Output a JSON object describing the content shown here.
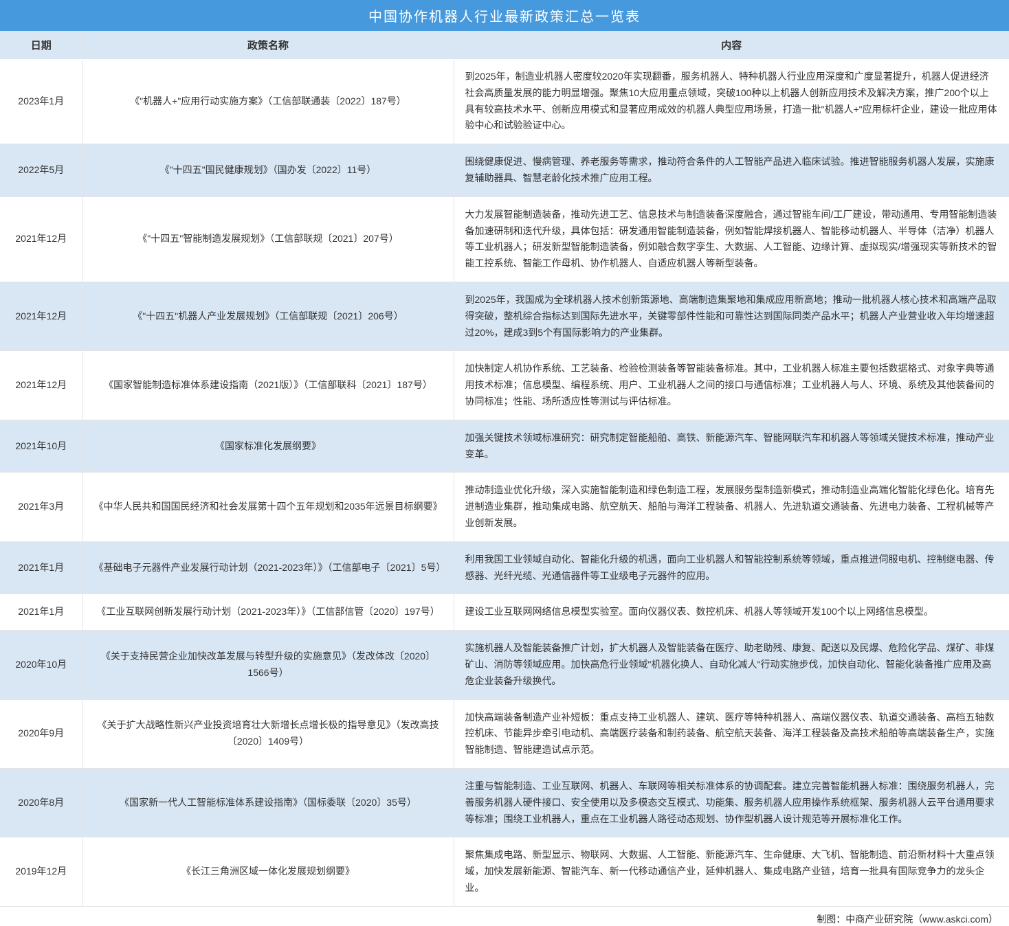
{
  "title": "中国协作机器人行业最新政策汇总一览表",
  "columns": [
    "日期",
    "政策名称",
    "内容"
  ],
  "rows": [
    {
      "date": "2023年1月",
      "policy": "《\"机器人+\"应用行动实施方案》（工信部联通装〔2022〕187号）",
      "content": "到2025年，制造业机器人密度较2020年实现翻番，服务机器人、特种机器人行业应用深度和广度显著提升，机器人促进经济社会高质量发展的能力明显增强。聚焦10大应用重点领域，突破100种以上机器人创新应用技术及解决方案，推广200个以上具有较高技术水平、创新应用模式和显著应用成效的机器人典型应用场景，打造一批\"机器人+\"应用标杆企业，建设一批应用体验中心和试验验证中心。"
    },
    {
      "date": "2022年5月",
      "policy": "《\"十四五\"国民健康规划》（国办发〔2022〕11号）",
      "content": "围绕健康促进、慢病管理、养老服务等需求，推动符合条件的人工智能产品进入临床试验。推进智能服务机器人发展，实施康复辅助器具、智慧老龄化技术推广应用工程。"
    },
    {
      "date": "2021年12月",
      "policy": "《\"十四五\"智能制造发展规划》（工信部联规〔2021〕207号）",
      "content": "大力发展智能制造装备，推动先进工艺、信息技术与制造装备深度融合，通过智能车间/工厂建设，带动通用、专用智能制造装备加速研制和迭代升级，具体包括：研发通用智能制造装备，例如智能焊接机器人、智能移动机器人、半导体（洁净）机器人等工业机器人；研发新型智能制造装备，例如融合数字孪生、大数据、人工智能、边缘计算、虚拟现实/增强现实等新技术的智能工控系统、智能工作母机、协作机器人、自适应机器人等新型装备。"
    },
    {
      "date": "2021年12月",
      "policy": "《\"十四五\"机器人产业发展规划》（工信部联规〔2021〕206号）",
      "content": "到2025年，我国成为全球机器人技术创新策源地、高端制造集聚地和集成应用新高地；推动一批机器人核心技术和高端产品取得突破，整机综合指标达到国际先进水平，关键零部件性能和可靠性达到国际同类产品水平；机器人产业营业收入年均增速超过20%，建成3到5个有国际影响力的产业集群。"
    },
    {
      "date": "2021年12月",
      "policy": "《国家智能制造标准体系建设指南（2021版）》（工信部联科〔2021〕187号）",
      "content": "加快制定人机协作系统、工艺装备、检验检测装备等智能装备标准。其中，工业机器人标准主要包括数据格式、对象字典等通用技术标准；信息模型、编程系统、用户、工业机器人之间的接口与通信标准；工业机器人与人、环境、系统及其他装备间的协同标准；性能、场所适应性等测试与评估标准。"
    },
    {
      "date": "2021年10月",
      "policy": "《国家标准化发展纲要》",
      "content": "加强关键技术领域标准研究：研究制定智能船舶、高铁、新能源汽车、智能网联汽车和机器人等领域关键技术标准，推动产业变革。"
    },
    {
      "date": "2021年3月",
      "policy": "《中华人民共和国国民经济和社会发展第十四个五年规划和2035年远景目标纲要》",
      "content": "推动制造业优化升级，深入实施智能制造和绿色制造工程，发展服务型制造新模式，推动制造业高端化智能化绿色化。培育先进制造业集群，推动集成电路、航空航天、船舶与海洋工程装备、机器人、先进轨道交通装备、先进电力装备、工程机械等产业创新发展。"
    },
    {
      "date": "2021年1月",
      "policy": "《基础电子元器件产业发展行动计划（2021-2023年）》（工信部电子〔2021〕5号）",
      "content": "利用我国工业领域自动化、智能化升级的机遇，面向工业机器人和智能控制系统等领域，重点推进伺服电机、控制继电器、传感器、光纤光缆、光通信器件等工业级电子元器件的应用。"
    },
    {
      "date": "2021年1月",
      "policy": "《工业互联网创新发展行动计划（2021-2023年）》（工信部信管〔2020〕197号）",
      "content": "建设工业互联网网络信息模型实验室。面向仪器仪表、数控机床、机器人等领域开发100个以上网络信息模型。"
    },
    {
      "date": "2020年10月",
      "policy": "《关于支持民营企业加快改革发展与转型升级的实施意见》（发改体改〔2020〕1566号）",
      "content": "实施机器人及智能装备推广计划，扩大机器人及智能装备在医疗、助老助残、康复、配送以及民爆、危险化学品、煤矿、非煤矿山、消防等领域应用。加快高危行业领域\"机器化换人、自动化减人\"行动实施步伐，加快自动化、智能化装备推广应用及高危企业装备升级换代。"
    },
    {
      "date": "2020年9月",
      "policy": "《关于扩大战略性新兴产业投资培育壮大新增长点增长极的指导意见》（发改高技〔2020〕1409号）",
      "content": "加快高端装备制造产业补短板：重点支持工业机器人、建筑、医疗等特种机器人、高端仪器仪表、轨道交通装备、高档五轴数控机床、节能异步牵引电动机、高端医疗装备和制药装备、航空航天装备、海洋工程装备及高技术船舶等高端装备生产，实施智能制造、智能建造试点示范。"
    },
    {
      "date": "2020年8月",
      "policy": "《国家新一代人工智能标准体系建设指南》（国标委联〔2020〕35号）",
      "content": "注重与智能制造、工业互联网、机器人、车联网等相关标准体系的协调配套。建立完善智能机器人标准：围绕服务机器人，完善服务机器人硬件接口、安全使用以及多模态交互模式、功能集、服务机器人应用操作系统框架、服务机器人云平台通用要求等标准；围绕工业机器人，重点在工业机器人路径动态规划、协作型机器人设计规范等开展标准化工作。"
    },
    {
      "date": "2019年12月",
      "policy": "《长江三角洲区域一体化发展规划纲要》",
      "content": "聚焦集成电路、新型显示、物联网、大数据、人工智能、新能源汽车、生命健康、大飞机、智能制造、前沿新材料十大重点领域，加快发展新能源、智能汽车、新一代移动通信产业，延伸机器人、集成电路产业链，培育一批具有国际竞争力的龙头企业。"
    }
  ],
  "footer": "制图：中商产业研究院（www.askci.com）",
  "colors": {
    "header_bg": "#4599dc",
    "header_text": "#ffffff",
    "thead_bg": "#d9e7f5",
    "row_even_bg": "#d9e7f5",
    "row_odd_bg": "#ffffff",
    "text": "#333333",
    "border": "#e5e5e5"
  },
  "fonts": {
    "title_size": 20,
    "header_size": 15,
    "cell_size": 14
  },
  "column_widths": {
    "date": 120,
    "policy": 540
  }
}
